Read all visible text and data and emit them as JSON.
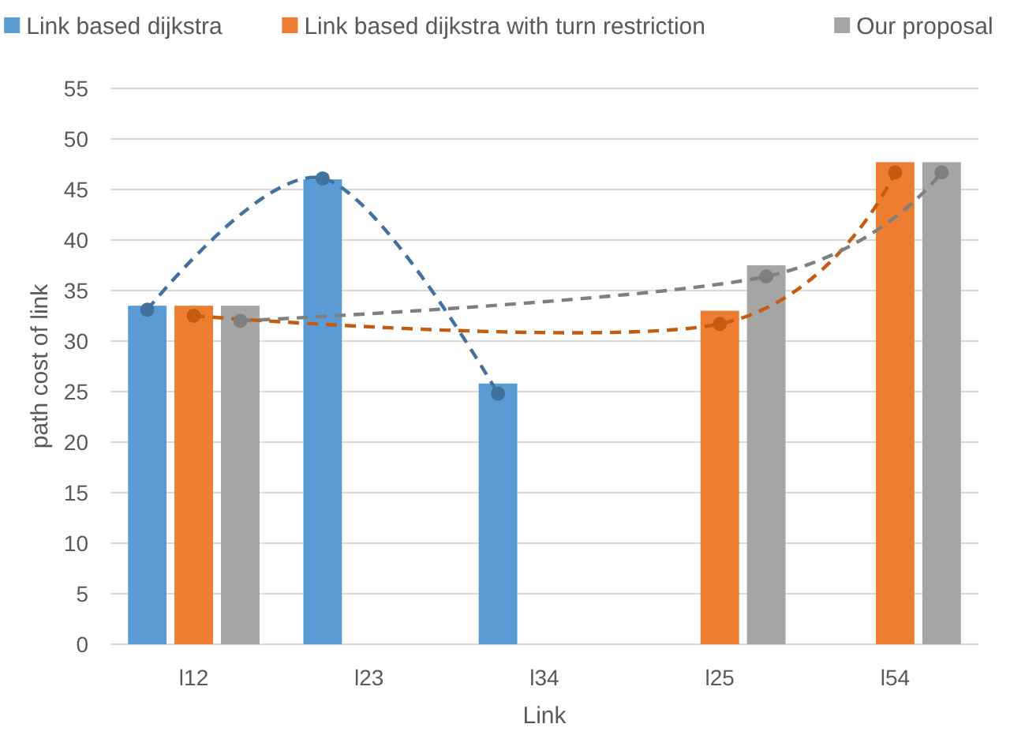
{
  "chart_data": {
    "type": "bar",
    "xlabel": "Link",
    "ylabel": "path cost of link",
    "categories": [
      "l12",
      "l23",
      "l34",
      "l25",
      "l54"
    ],
    "ylim": [
      0,
      55
    ],
    "yticks": [
      0,
      5,
      10,
      15,
      20,
      25,
      30,
      35,
      40,
      45,
      50,
      55
    ],
    "grid": "y",
    "legend": "top",
    "series": [
      {
        "name": "Link based dijkstra",
        "color": "#5b9bd5",
        "values": [
          33.5,
          46,
          25.8,
          null,
          null
        ]
      },
      {
        "name": "Link based dijkstra with turn restriction",
        "color": "#ed7d31",
        "values": [
          33.5,
          null,
          null,
          33,
          47.7
        ]
      },
      {
        "name": "Our proposal",
        "color": "#a5a5a5",
        "values": [
          33.5,
          null,
          null,
          37.5,
          47.7
        ]
      },
      {
        "type": "line",
        "color": "#41719c",
        "marker": "circle",
        "line_style": "dashed",
        "values": [
          33.1,
          46.1,
          24.8,
          null,
          null
        ]
      },
      {
        "type": "line",
        "color": "#c55a11",
        "marker": "circle",
        "line_style": "dashed",
        "values": [
          32.5,
          null,
          null,
          31.7,
          46.7
        ]
      },
      {
        "type": "line",
        "color": "#7f7f7f",
        "marker": "circle",
        "line_style": "dashed",
        "values": [
          32,
          null,
          null,
          36.4,
          46.7
        ]
      }
    ]
  }
}
